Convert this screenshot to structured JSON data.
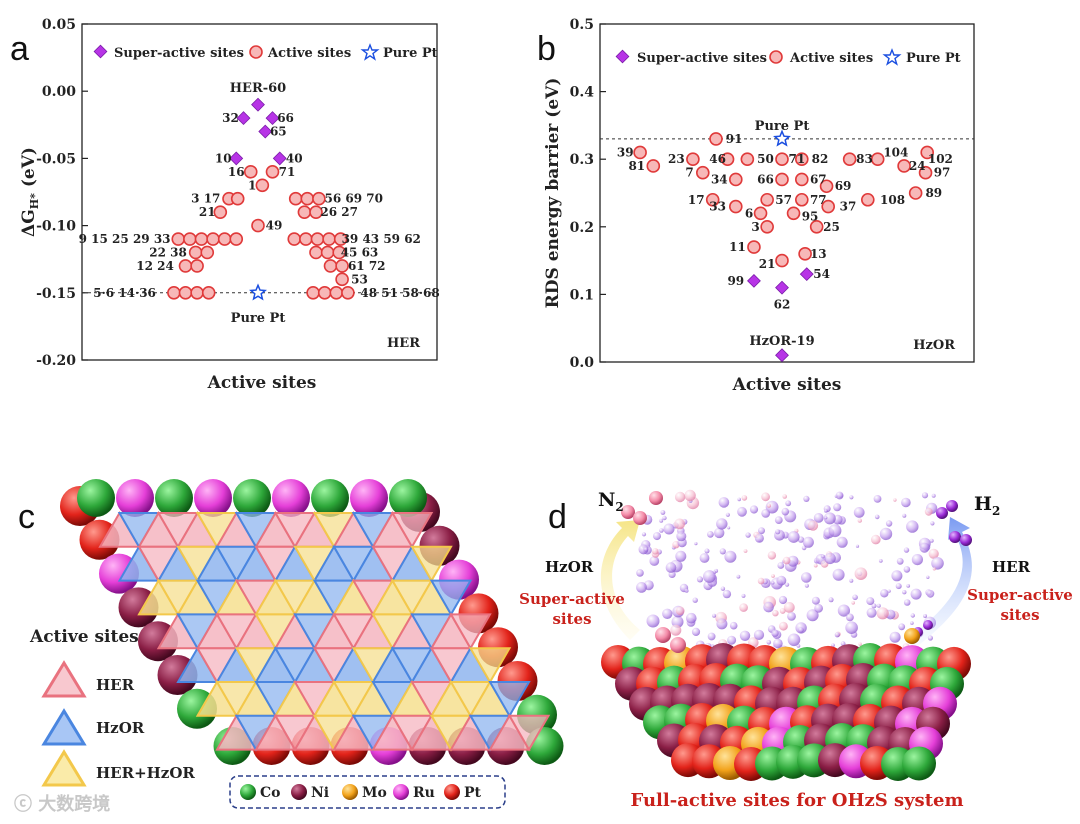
{
  "chart_data": [
    {
      "type": "scatter",
      "panel": "a",
      "ylabel": "ΔG_H* (eV)",
      "ylabel_main": "ΔG",
      "ylabel_sub": "H*",
      "ylabel_unit": " (eV)",
      "xlabel": "Active sites",
      "ylim": [
        -0.2,
        0.05
      ],
      "yticks": [
        "0.05",
        "0.00",
        "-0.05",
        "-0.10",
        "-0.15",
        "-0.20"
      ],
      "corner_label": "HER",
      "legend": [
        "Super-active sites",
        "Active sites",
        "Pure Pt"
      ],
      "reference_label": "Pure Pt",
      "top_label": "HER-60",
      "super_active": [
        {
          "x": 0,
          "y": -0.01
        },
        {
          "x": -1,
          "y": -0.02
        },
        {
          "x": 1,
          "y": -0.02
        },
        {
          "x": 0.5,
          "y": -0.03
        },
        {
          "x": -1.5,
          "y": -0.05
        },
        {
          "x": 1.5,
          "y": -0.05
        }
      ],
      "active": [
        {
          "x": -0.5,
          "y": -0.06
        },
        {
          "x": 1,
          "y": -0.06
        },
        {
          "x": 0.3,
          "y": -0.07
        },
        {
          "x": -2,
          "y": -0.08
        },
        {
          "x": -1.4,
          "y": -0.08
        },
        {
          "x": 2.6,
          "y": -0.08
        },
        {
          "x": 3.4,
          "y": -0.08
        },
        {
          "x": 4.2,
          "y": -0.08
        },
        {
          "x": -2.6,
          "y": -0.09
        },
        {
          "x": 3.2,
          "y": -0.09
        },
        {
          "x": 4.0,
          "y": -0.09
        },
        {
          "x": 0,
          "y": -0.1
        },
        {
          "x": -5.5,
          "y": -0.11
        },
        {
          "x": -4.7,
          "y": -0.11
        },
        {
          "x": -3.9,
          "y": -0.11
        },
        {
          "x": -3.1,
          "y": -0.11
        },
        {
          "x": -2.3,
          "y": -0.11
        },
        {
          "x": -1.5,
          "y": -0.11
        },
        {
          "x": 2.5,
          "y": -0.11
        },
        {
          "x": 3.3,
          "y": -0.11
        },
        {
          "x": 4.1,
          "y": -0.11
        },
        {
          "x": 4.9,
          "y": -0.11
        },
        {
          "x": 5.7,
          "y": -0.11
        },
        {
          "x": -4.3,
          "y": -0.12
        },
        {
          "x": -3.5,
          "y": -0.12
        },
        {
          "x": 4.0,
          "y": -0.12
        },
        {
          "x": 4.8,
          "y": -0.12
        },
        {
          "x": 5.6,
          "y": -0.12
        },
        {
          "x": -5.0,
          "y": -0.13
        },
        {
          "x": -4.2,
          "y": -0.13
        },
        {
          "x": 5.0,
          "y": -0.13
        },
        {
          "x": 5.8,
          "y": -0.13
        },
        {
          "x": 5.8,
          "y": -0.14
        },
        {
          "x": -5.8,
          "y": -0.15
        },
        {
          "x": -5.0,
          "y": -0.15
        },
        {
          "x": -4.2,
          "y": -0.15
        },
        {
          "x": -3.4,
          "y": -0.15
        },
        {
          "x": 3.8,
          "y": -0.15
        },
        {
          "x": 4.6,
          "y": -0.15
        },
        {
          "x": 5.4,
          "y": -0.15
        },
        {
          "x": 6.2,
          "y": -0.15
        }
      ],
      "pure_pt": {
        "x": 0,
        "y": -0.15
      },
      "point_labels": [
        {
          "t": "32",
          "x": -1.9,
          "y": -0.02
        },
        {
          "t": "66",
          "x": 1.9,
          "y": -0.02
        },
        {
          "t": "65",
          "x": 1.4,
          "y": -0.03
        },
        {
          "t": "10",
          "x": -2.4,
          "y": -0.05
        },
        {
          "t": "40",
          "x": 2.5,
          "y": -0.05
        },
        {
          "t": "16",
          "x": -1.5,
          "y": -0.06
        },
        {
          "t": "71",
          "x": 2.0,
          "y": -0.06
        },
        {
          "t": "1",
          "x": -0.4,
          "y": -0.07
        },
        {
          "t": "3 17",
          "x": -3.6,
          "y": -0.08
        },
        {
          "t": "56 69 70",
          "x": 6.6,
          "y": -0.08
        },
        {
          "t": "21",
          "x": -3.5,
          "y": -0.09
        },
        {
          "t": "26 27",
          "x": 5.6,
          "y": -0.09
        },
        {
          "t": "49",
          "x": 1.1,
          "y": -0.1
        },
        {
          "t": "9 15 25 29 33",
          "x": -9.2,
          "y": -0.11
        },
        {
          "t": "39 43 59 62",
          "x": 8.5,
          "y": -0.11
        },
        {
          "t": "22 38",
          "x": -6.2,
          "y": -0.12
        },
        {
          "t": "45 63",
          "x": 7.0,
          "y": -0.12
        },
        {
          "t": "12 24",
          "x": -7.1,
          "y": -0.13
        },
        {
          "t": "61 72",
          "x": 7.5,
          "y": -0.13
        },
        {
          "t": "53",
          "x": 7.0,
          "y": -0.14
        },
        {
          "t": "5·6 14·36",
          "x": -9.2,
          "y": -0.15
        },
        {
          "t": "48 51 58·68",
          "x": 9.8,
          "y": -0.15
        }
      ]
    },
    {
      "type": "scatter",
      "panel": "b",
      "ylabel": "RDS energy barrier (eV)",
      "xlabel": "Active sites",
      "ylim": [
        0.0,
        0.5
      ],
      "yticks": [
        "0.5",
        "0.4",
        "0.3",
        "0.2",
        "0.1",
        "0.0"
      ],
      "corner_label": "HzOR",
      "legend": [
        "Super-active sites",
        "Active sites",
        "Pure Pt"
      ],
      "reference_label": "Pure Pt",
      "bottom_label": "HzOR-19",
      "super_active": [
        {
          "x": 0,
          "y": 0.01
        },
        {
          "x": -1.7,
          "y": 0.12
        },
        {
          "x": 0,
          "y": 0.11
        },
        {
          "x": 1.5,
          "y": 0.13
        }
      ],
      "active": [
        {
          "x": -4,
          "y": 0.33
        },
        {
          "x": -8.6,
          "y": 0.31
        },
        {
          "x": 8.8,
          "y": 0.31
        },
        {
          "x": -5.4,
          "y": 0.3
        },
        {
          "x": -3.3,
          "y": 0.3
        },
        {
          "x": -2.1,
          "y": 0.3
        },
        {
          "x": 0,
          "y": 0.3
        },
        {
          "x": 1.2,
          "y": 0.3
        },
        {
          "x": 4.1,
          "y": 0.3
        },
        {
          "x": 5.8,
          "y": 0.3
        },
        {
          "x": -7.8,
          "y": 0.29
        },
        {
          "x": 7.4,
          "y": 0.29
        },
        {
          "x": -4.8,
          "y": 0.28
        },
        {
          "x": 8.7,
          "y": 0.28
        },
        {
          "x": -2.8,
          "y": 0.27
        },
        {
          "x": 0,
          "y": 0.27
        },
        {
          "x": 1.2,
          "y": 0.27
        },
        {
          "x": 2.7,
          "y": 0.26
        },
        {
          "x": 8.1,
          "y": 0.25
        },
        {
          "x": -4.2,
          "y": 0.24
        },
        {
          "x": -0.9,
          "y": 0.24
        },
        {
          "x": 1.2,
          "y": 0.24
        },
        {
          "x": 5.2,
          "y": 0.24
        },
        {
          "x": -2.8,
          "y": 0.23
        },
        {
          "x": 2.8,
          "y": 0.23
        },
        {
          "x": -1.3,
          "y": 0.22
        },
        {
          "x": 0.7,
          "y": 0.22
        },
        {
          "x": -0.9,
          "y": 0.2
        },
        {
          "x": 2.1,
          "y": 0.2
        },
        {
          "x": -1.7,
          "y": 0.17
        },
        {
          "x": 1.4,
          "y": 0.16
        },
        {
          "x": 0,
          "y": 0.15
        }
      ],
      "pure_pt": {
        "x": 0,
        "y": 0.33
      },
      "point_labels": [
        {
          "t": "91",
          "x": -2.9,
          "y": 0.33
        },
        {
          "t": "39",
          "x": -9.5,
          "y": 0.31
        },
        {
          "t": "102",
          "x": 9.6,
          "y": 0.3
        },
        {
          "t": "81",
          "x": -8.8,
          "y": 0.29
        },
        {
          "t": "23",
          "x": -6.4,
          "y": 0.3
        },
        {
          "t": "46",
          "x": -3.9,
          "y": 0.3
        },
        {
          "t": "50",
          "x": -1.0,
          "y": 0.3
        },
        {
          "t": "71",
          "x": 0.9,
          "y": 0.3
        },
        {
          "t": "82",
          "x": 2.3,
          "y": 0.3
        },
        {
          "t": "83",
          "x": 5.0,
          "y": 0.3
        },
        {
          "t": "104",
          "x": 6.9,
          "y": 0.31
        },
        {
          "t": "7",
          "x": -5.6,
          "y": 0.28
        },
        {
          "t": "24",
          "x": 8.2,
          "y": 0.29
        },
        {
          "t": "97",
          "x": 9.7,
          "y": 0.28
        },
        {
          "t": "34",
          "x": -3.8,
          "y": 0.27
        },
        {
          "t": "66",
          "x": -1.0,
          "y": 0.27
        },
        {
          "t": "67",
          "x": 2.2,
          "y": 0.27
        },
        {
          "t": "69",
          "x": 3.7,
          "y": 0.26
        },
        {
          "t": "89",
          "x": 9.2,
          "y": 0.25
        },
        {
          "t": "17",
          "x": -5.2,
          "y": 0.24
        },
        {
          "t": "57",
          "x": 0.1,
          "y": 0.24
        },
        {
          "t": "77",
          "x": 2.2,
          "y": 0.24
        },
        {
          "t": "108",
          "x": 6.7,
          "y": 0.24
        },
        {
          "t": "33",
          "x": -3.9,
          "y": 0.23
        },
        {
          "t": "37",
          "x": 4.0,
          "y": 0.23
        },
        {
          "t": "6",
          "x": -2.0,
          "y": 0.22
        },
        {
          "t": "95",
          "x": 1.7,
          "y": 0.215
        },
        {
          "t": "3",
          "x": -1.6,
          "y": 0.2
        },
        {
          "t": "25",
          "x": 3.0,
          "y": 0.2
        },
        {
          "t": "11",
          "x": -2.7,
          "y": 0.17
        },
        {
          "t": "13",
          "x": 2.2,
          "y": 0.16
        },
        {
          "t": "21",
          "x": -0.9,
          "y": 0.145
        },
        {
          "t": "54",
          "x": 2.4,
          "y": 0.13
        },
        {
          "t": "99",
          "x": -2.8,
          "y": 0.12
        },
        {
          "t": "62",
          "x": 0,
          "y": 0.085
        }
      ]
    }
  ],
  "panel_c": {
    "letter": "c",
    "active_sites_title": "Active sites",
    "legend": [
      {
        "label": "HER",
        "color": "#e9727f"
      },
      {
        "label": "HzOR",
        "color": "#4a86e0"
      },
      {
        "label": "HER+HzOR",
        "color": "#f3c84b"
      }
    ],
    "elements": [
      {
        "label": "Co",
        "color": "#2ea83a"
      },
      {
        "label": "Ni",
        "color": "#8a1e45"
      },
      {
        "label": "Mo",
        "color": "#f2a21a"
      },
      {
        "label": "Ru",
        "color": "#e53fd8"
      },
      {
        "label": "Pt",
        "color": "#e2231a"
      }
    ]
  },
  "panel_d": {
    "letter": "d",
    "n2": "N",
    "n2_sub": "2",
    "h2": "H",
    "h2_sub": "2",
    "left_reaction": "HzOR",
    "right_reaction": "HER",
    "left_super1": "Super-active",
    "left_super2": "sites",
    "right_super1": "Super-active",
    "right_super2": "sites",
    "caption": "Full-active sites for OHzS system"
  },
  "watermark": "大数跨境"
}
